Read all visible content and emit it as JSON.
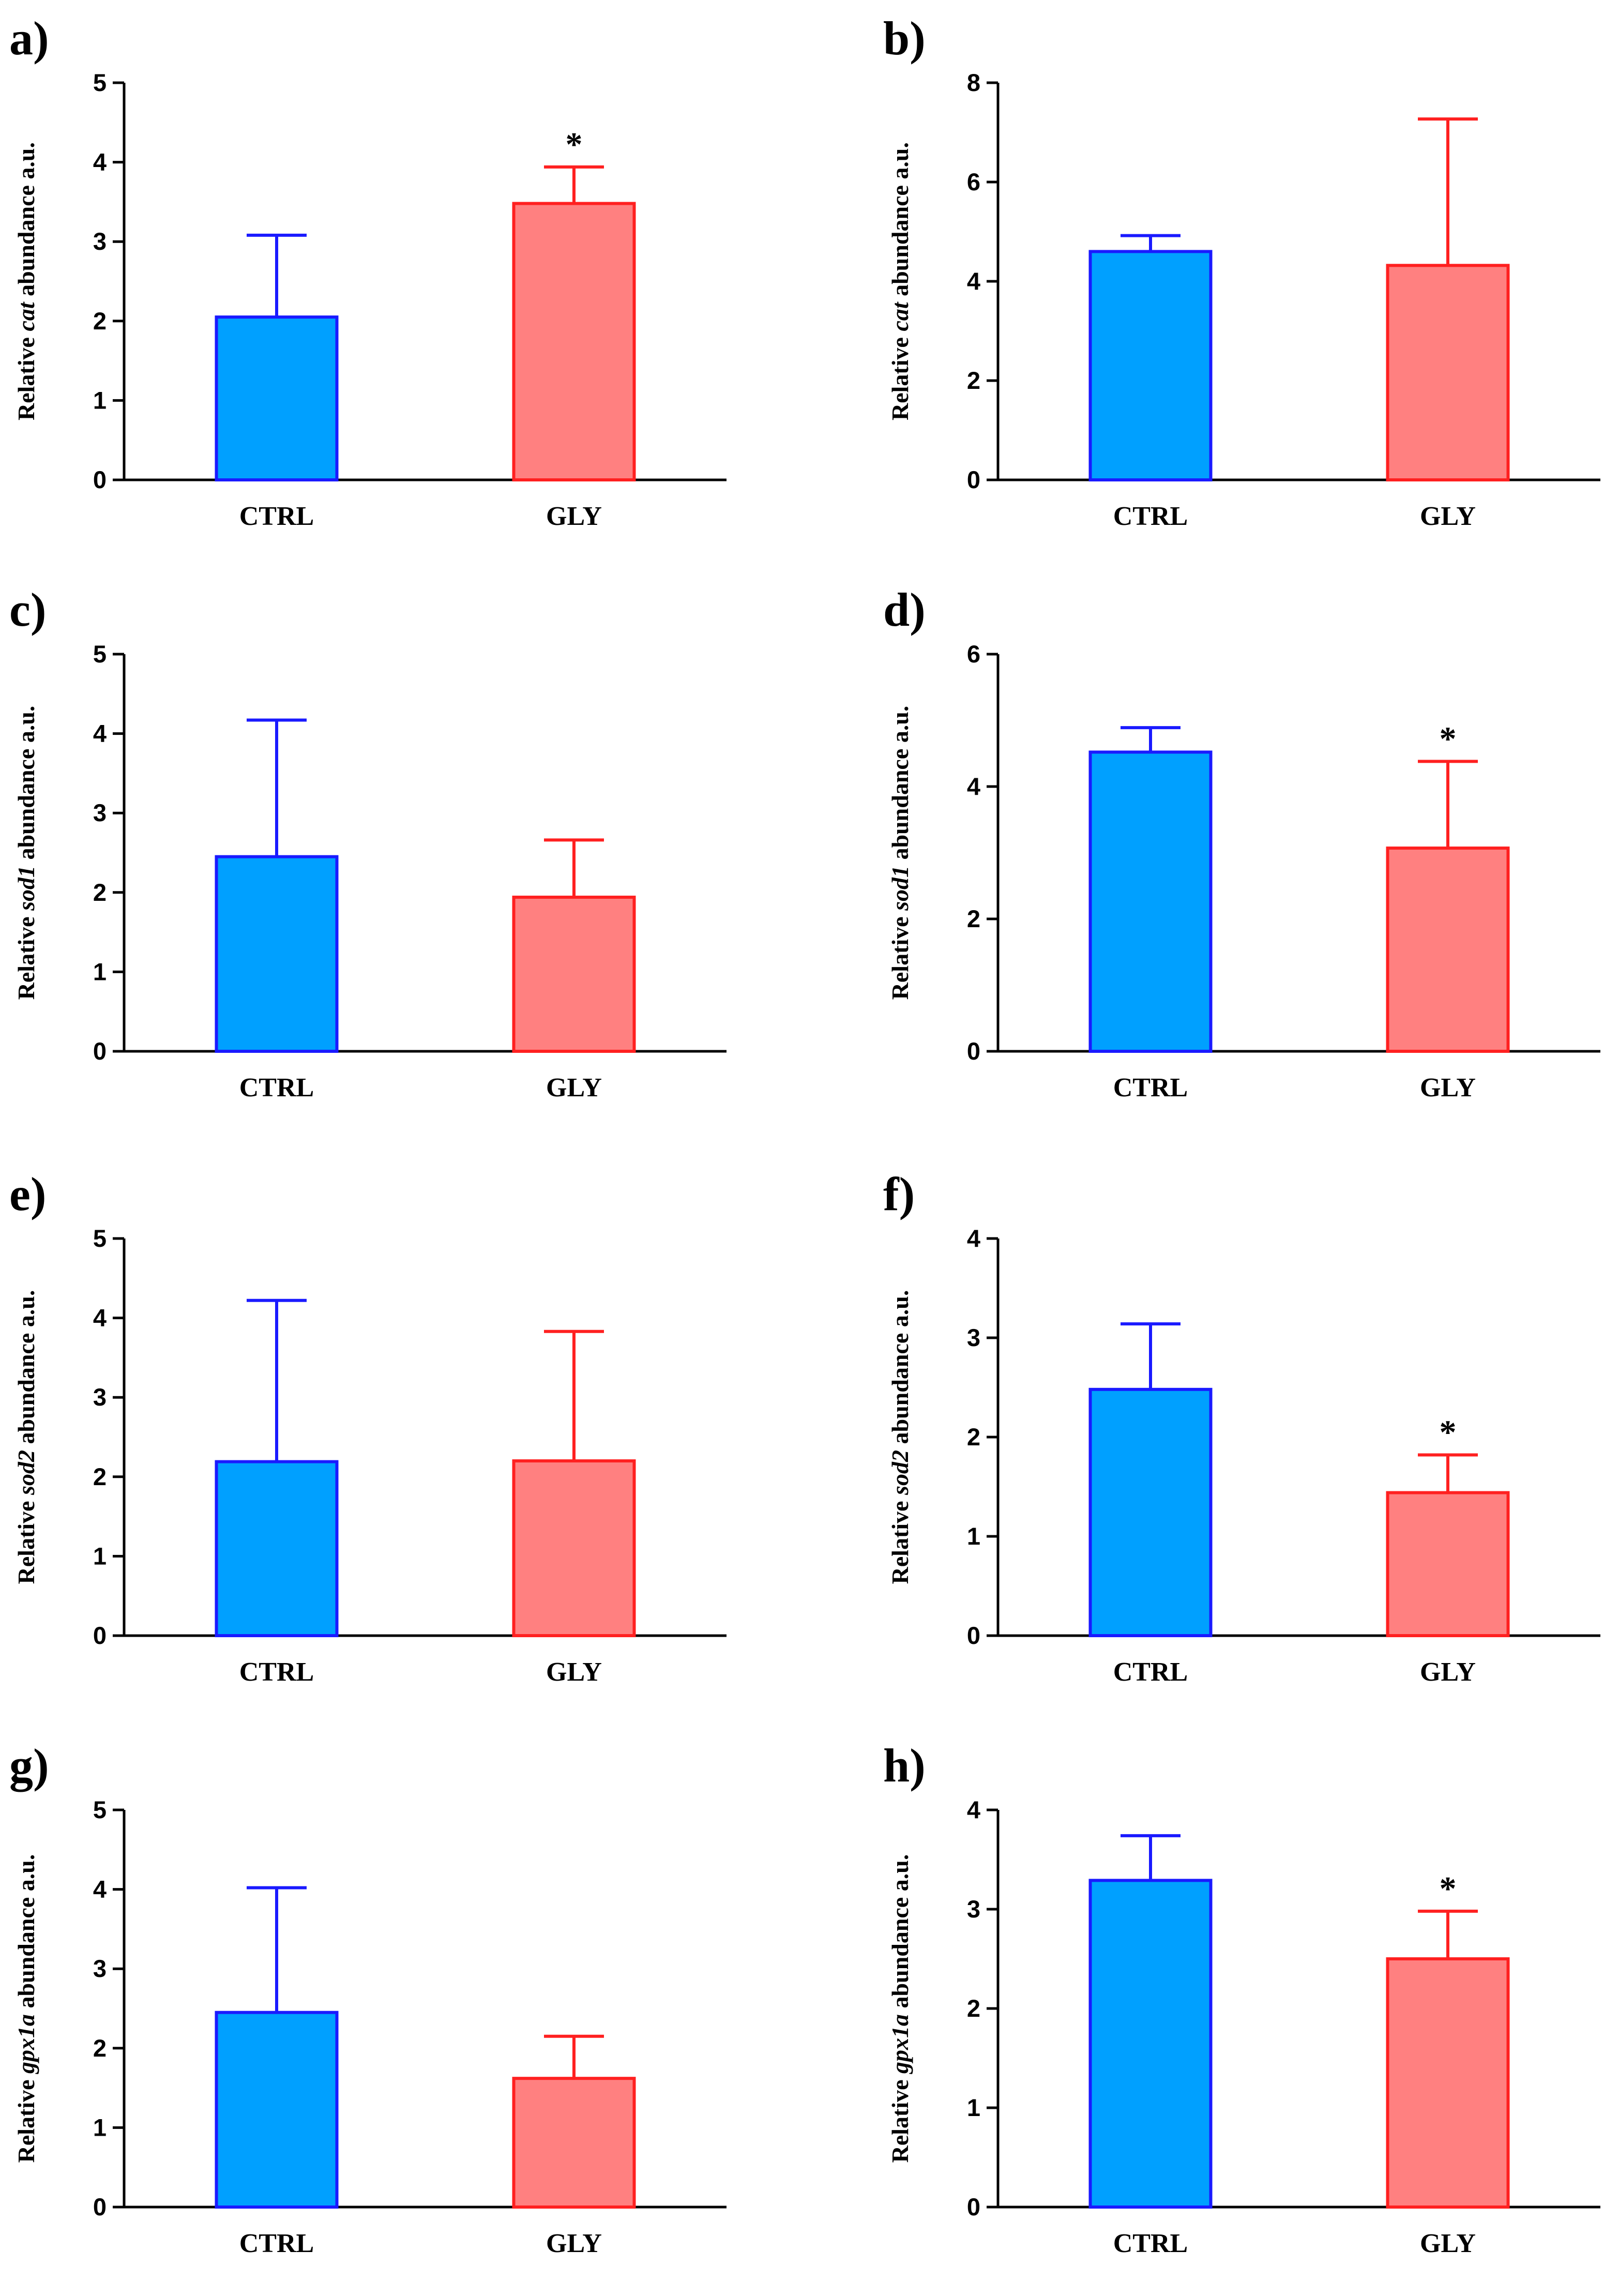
{
  "colors": {
    "ctrl_fill": "#00a0ff",
    "ctrl_stroke": "#1a1aff",
    "gly_fill": "#ff8080",
    "gly_stroke": "#ff2020",
    "axis": "#000000"
  },
  "chart_data": [
    {
      "panel": "a)",
      "type": "bar",
      "categories": [
        "CTRL",
        "GLY"
      ],
      "values": [
        2.05,
        3.48
      ],
      "errors": [
        1.03,
        0.46
      ],
      "significance": [
        "",
        "*"
      ],
      "ylabel": {
        "prefix": "Relative ",
        "gene": "cat",
        "suffix": " abundance a.u."
      },
      "ylim": [
        0,
        5
      ],
      "yticks": [
        "0",
        "1",
        "2",
        "3",
        "4",
        "5"
      ]
    },
    {
      "panel": "b)",
      "type": "bar",
      "categories": [
        "CTRL",
        "GLY"
      ],
      "values": [
        4.6,
        4.32
      ],
      "errors": [
        0.32,
        2.95
      ],
      "significance": [
        "",
        ""
      ],
      "ylabel": {
        "prefix": "Relative ",
        "gene": "cat",
        "suffix": " abundance a.u."
      },
      "ylim": [
        0,
        8
      ],
      "yticks": [
        "0",
        "2",
        "4",
        "6",
        "8"
      ]
    },
    {
      "panel": "c)",
      "type": "bar",
      "categories": [
        "CTRL",
        "GLY"
      ],
      "values": [
        2.45,
        1.94
      ],
      "errors": [
        1.72,
        0.72
      ],
      "significance": [
        "",
        ""
      ],
      "ylabel": {
        "prefix": "Relative ",
        "gene": "sod1",
        "suffix": " abundance a.u."
      },
      "ylim": [
        0,
        5
      ],
      "yticks": [
        "0",
        "1",
        "2",
        "3",
        "4",
        "5"
      ]
    },
    {
      "panel": "d)",
      "type": "bar",
      "categories": [
        "CTRL",
        "GLY"
      ],
      "values": [
        4.52,
        3.07
      ],
      "errors": [
        0.37,
        1.31
      ],
      "significance": [
        "",
        "*"
      ],
      "ylabel": {
        "prefix": "Relative ",
        "gene": "sod1",
        "suffix": " abundance a.u."
      },
      "ylim": [
        0,
        6
      ],
      "yticks": [
        "0",
        "2",
        "4",
        "6"
      ]
    },
    {
      "panel": "e)",
      "type": "bar",
      "categories": [
        "CTRL",
        "GLY"
      ],
      "values": [
        2.19,
        2.2
      ],
      "errors": [
        2.03,
        1.63
      ],
      "significance": [
        "",
        ""
      ],
      "ylabel": {
        "prefix": "Relative ",
        "gene": "sod2",
        "suffix": " abundance a.u."
      },
      "ylim": [
        0,
        5
      ],
      "yticks": [
        "0",
        "1",
        "2",
        "3",
        "4",
        "5"
      ]
    },
    {
      "panel": "f)",
      "type": "bar",
      "categories": [
        "CTRL",
        "GLY"
      ],
      "values": [
        2.48,
        1.44
      ],
      "errors": [
        0.66,
        0.38
      ],
      "significance": [
        "",
        "*"
      ],
      "ylabel": {
        "prefix": "Relative ",
        "gene": "sod2",
        "suffix": " abundance a.u."
      },
      "ylim": [
        0,
        4
      ],
      "yticks": [
        "0",
        "1",
        "2",
        "3",
        "4"
      ]
    },
    {
      "panel": "g)",
      "type": "bar",
      "categories": [
        "CTRL",
        "GLY"
      ],
      "values": [
        2.45,
        1.62
      ],
      "errors": [
        1.57,
        0.53
      ],
      "significance": [
        "",
        ""
      ],
      "ylabel": {
        "prefix": "Relative ",
        "gene": "gpx1a",
        "suffix": " abundance a.u."
      },
      "ylim": [
        0,
        5
      ],
      "yticks": [
        "0",
        "1",
        "2",
        "3",
        "4",
        "5"
      ]
    },
    {
      "panel": "h)",
      "type": "bar",
      "categories": [
        "CTRL",
        "GLY"
      ],
      "values": [
        3.29,
        2.5
      ],
      "errors": [
        0.45,
        0.48
      ],
      "significance": [
        "",
        "*"
      ],
      "ylabel": {
        "prefix": "Relative ",
        "gene": "gpx1a",
        "suffix": " abundance a.u."
      },
      "ylim": [
        0,
        4
      ],
      "yticks": [
        "0",
        "1",
        "2",
        "3",
        "4"
      ]
    }
  ]
}
